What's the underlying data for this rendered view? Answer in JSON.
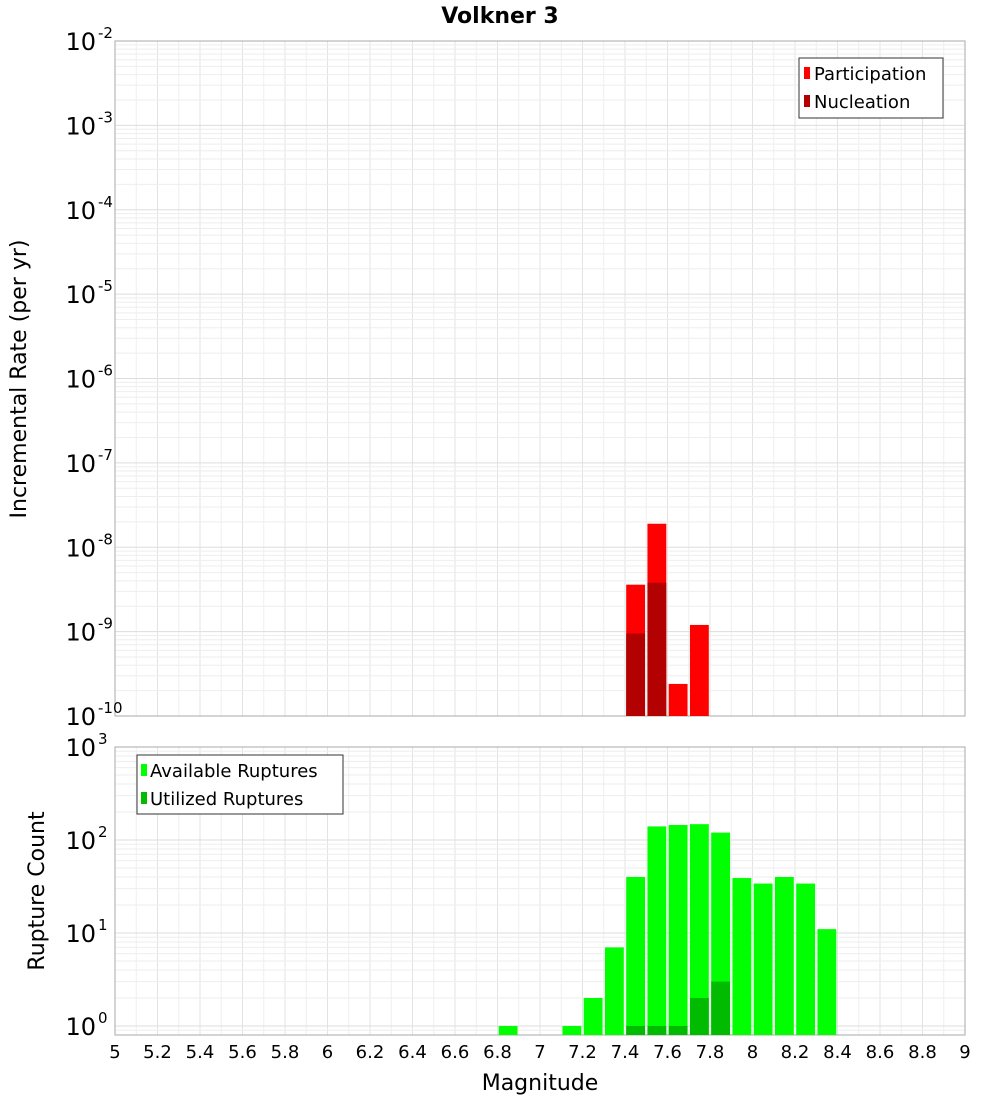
{
  "chart_data": {
    "title": "Volkner 3",
    "xlabel": "Magnitude",
    "xlim": [
      5,
      9
    ],
    "x_ticks": [
      "5",
      "5.2",
      "5.4",
      "5.6",
      "5.8",
      "6",
      "6.2",
      "6.4",
      "6.6",
      "6.8",
      "7",
      "7.2",
      "7.4",
      "7.6",
      "7.8",
      "8",
      "8.2",
      "8.4",
      "8.6",
      "8.8",
      "9"
    ],
    "bin_width": 0.1,
    "panels": [
      {
        "type": "bar",
        "ylabel": "Incremental Rate (per yr)",
        "yscale": "log",
        "ylim": [
          1e-10,
          0.01
        ],
        "y_tick_exponents": [
          "-10",
          "-9",
          "-8",
          "-7",
          "-6",
          "-5",
          "-4",
          "-3",
          "-2"
        ],
        "legend_position": "top-right",
        "series": [
          {
            "name": "Participation",
            "color": "#ff0000",
            "x": [
              7.45,
              7.55,
              7.65,
              7.75
            ],
            "values": [
              3.6e-09,
              1.9e-08,
              2.4e-10,
              1.2e-09
            ]
          },
          {
            "name": "Nucleation",
            "color": "#b30000",
            "x": [
              7.45,
              7.55
            ],
            "values": [
              9.5e-10,
              3.8e-09
            ]
          }
        ]
      },
      {
        "type": "bar",
        "ylabel": "Rupture Count",
        "yscale": "log",
        "ylim": [
          0.8,
          1000
        ],
        "y_tick_exponents": [
          "0",
          "1",
          "2",
          "3"
        ],
        "legend_position": "top-left",
        "series": [
          {
            "name": "Available Ruptures",
            "color": "#00ff00",
            "x": [
              6.85,
              7.15,
              7.25,
              7.35,
              7.45,
              7.55,
              7.65,
              7.75,
              7.85,
              7.95,
              8.05,
              8.15,
              8.25,
              8.35
            ],
            "values": [
              1,
              1,
              2,
              7,
              40,
              140,
              145,
              148,
              120,
              39,
              34,
              40,
              34,
              11
            ]
          },
          {
            "name": "Utilized Ruptures",
            "color": "#00bb00",
            "x": [
              7.45,
              7.55,
              7.65,
              7.75,
              7.85
            ],
            "values": [
              1,
              1,
              1,
              2,
              3
            ]
          }
        ]
      }
    ]
  }
}
